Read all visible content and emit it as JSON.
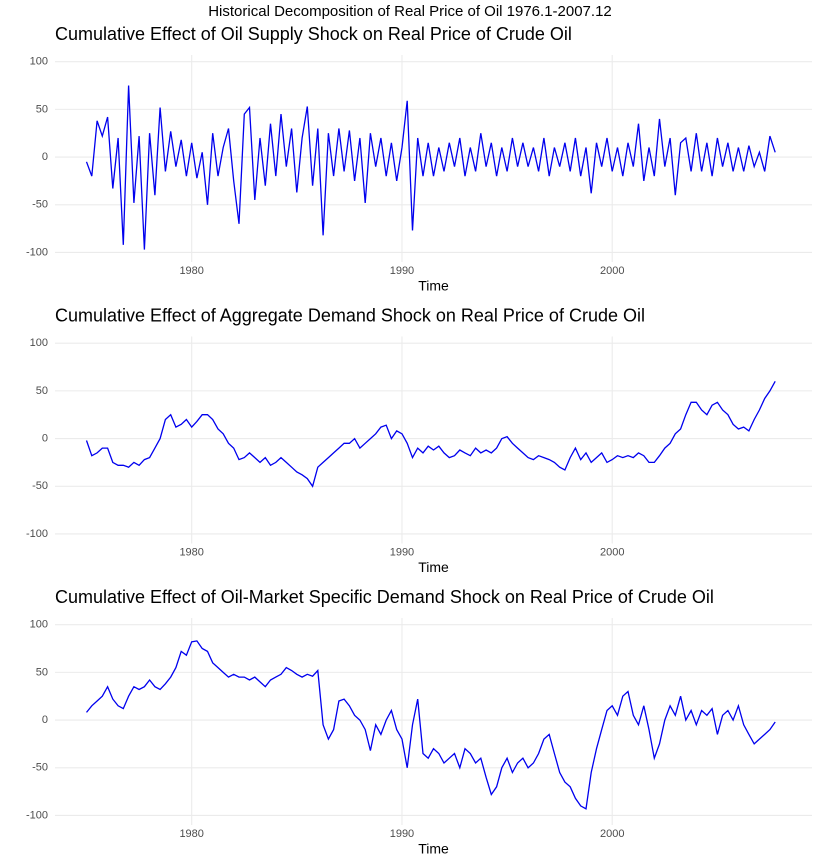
{
  "title": "Historical Decomposition of Real Price of Oil 1976.1-2007.12",
  "chart_data": [
    {
      "type": "line",
      "title": "Cumulative Effect of Oil Supply Shock on Real Price of Crude Oil",
      "xlabel": "Time",
      "x": [
        1975,
        1975.25,
        1975.5,
        1975.75,
        1976,
        1976.25,
        1976.5,
        1976.75,
        1977,
        1977.25,
        1977.5,
        1977.75,
        1978,
        1978.25,
        1978.5,
        1978.75,
        1979,
        1979.25,
        1979.5,
        1979.75,
        1980,
        1980.25,
        1980.5,
        1980.75,
        1981,
        1981.25,
        1981.5,
        1981.75,
        1982,
        1982.25,
        1982.5,
        1982.75,
        1983,
        1983.25,
        1983.5,
        1983.75,
        1984,
        1984.25,
        1984.5,
        1984.75,
        1985,
        1985.25,
        1985.5,
        1985.75,
        1986,
        1986.25,
        1986.5,
        1986.75,
        1987,
        1987.25,
        1987.5,
        1987.75,
        1988,
        1988.25,
        1988.5,
        1988.75,
        1989,
        1989.25,
        1989.5,
        1989.75,
        1990,
        1990.25,
        1990.5,
        1990.75,
        1991,
        1991.25,
        1991.5,
        1991.75,
        1992,
        1992.25,
        1992.5,
        1992.75,
        1993,
        1993.25,
        1993.5,
        1993.75,
        1994,
        1994.25,
        1994.5,
        1994.75,
        1995,
        1995.25,
        1995.5,
        1995.75,
        1996,
        1996.25,
        1996.5,
        1996.75,
        1997,
        1997.25,
        1997.5,
        1997.75,
        1998,
        1998.25,
        1998.5,
        1998.75,
        1999,
        1999.25,
        1999.5,
        1999.75,
        2000,
        2000.25,
        2000.5,
        2000.75,
        2001,
        2001.25,
        2001.5,
        2001.75,
        2002,
        2002.25,
        2002.5,
        2002.75,
        2003,
        2003.25,
        2003.5,
        2003.75,
        2004,
        2004.25,
        2004.5,
        2004.75,
        2005,
        2005.25,
        2005.5,
        2005.75,
        2006,
        2006.25,
        2006.5,
        2006.75,
        2007,
        2007.25,
        2007.5,
        2007.75
      ],
      "series": [
        {
          "color": "#0000ee",
          "values": [
            -5,
            -20,
            38,
            22,
            42,
            -33,
            20,
            -92,
            75,
            -48,
            22,
            -97,
            25,
            -40,
            52,
            -15,
            27,
            -10,
            18,
            -20,
            15,
            -22,
            5,
            -50,
            25,
            -20,
            10,
            30,
            -25,
            -70,
            45,
            52,
            -45,
            20,
            -30,
            35,
            -20,
            45,
            -10,
            30,
            -37,
            20,
            53,
            -30,
            30,
            -82,
            25,
            -20,
            30,
            -15,
            28,
            -25,
            20,
            -48,
            25,
            -10,
            20,
            -20,
            15,
            -25,
            10,
            59,
            -77,
            20,
            -20,
            15,
            -20,
            10,
            -15,
            15,
            -10,
            20,
            -20,
            10,
            -15,
            25,
            -10,
            15,
            -20,
            10,
            -15,
            20,
            -10,
            15,
            -10,
            10,
            -15,
            20,
            -20,
            10,
            -10,
            15,
            -15,
            20,
            -20,
            10,
            -38,
            15,
            -10,
            20,
            -15,
            10,
            -20,
            15,
            -10,
            35,
            -25,
            10,
            -20,
            40,
            -10,
            20,
            -40,
            15,
            20,
            -15,
            25,
            -15,
            15,
            -20,
            20,
            -10,
            15,
            -15,
            10,
            -15,
            12,
            -10,
            5,
            -15,
            22,
            5
          ]
        }
      ],
      "xlim": [
        1973.5,
        2009.5
      ],
      "ylim": [
        -110,
        107
      ],
      "xticks": [
        1980,
        1990,
        2000
      ],
      "yticks": [
        -100,
        -50,
        0,
        50,
        100
      ],
      "grid": true
    },
    {
      "type": "line",
      "title": "Cumulative Effect of Aggregate Demand Shock on Real Price of Crude Oil",
      "xlabel": "Time",
      "x": [
        1975,
        1975.25,
        1975.5,
        1975.75,
        1976,
        1976.25,
        1976.5,
        1976.75,
        1977,
        1977.25,
        1977.5,
        1977.75,
        1978,
        1978.25,
        1978.5,
        1978.75,
        1979,
        1979.25,
        1979.5,
        1979.75,
        1980,
        1980.25,
        1980.5,
        1980.75,
        1981,
        1981.25,
        1981.5,
        1981.75,
        1982,
        1982.25,
        1982.5,
        1982.75,
        1983,
        1983.25,
        1983.5,
        1983.75,
        1984,
        1984.25,
        1984.5,
        1984.75,
        1985,
        1985.25,
        1985.5,
        1985.75,
        1986,
        1986.25,
        1986.5,
        1986.75,
        1987,
        1987.25,
        1987.5,
        1987.75,
        1988,
        1988.25,
        1988.5,
        1988.75,
        1989,
        1989.25,
        1989.5,
        1989.75,
        1990,
        1990.25,
        1990.5,
        1990.75,
        1991,
        1991.25,
        1991.5,
        1991.75,
        1992,
        1992.25,
        1992.5,
        1992.75,
        1993,
        1993.25,
        1993.5,
        1993.75,
        1994,
        1994.25,
        1994.5,
        1994.75,
        1995,
        1995.25,
        1995.5,
        1995.75,
        1996,
        1996.25,
        1996.5,
        1996.75,
        1997,
        1997.25,
        1997.5,
        1997.75,
        1998,
        1998.25,
        1998.5,
        1998.75,
        1999,
        1999.25,
        1999.5,
        1999.75,
        2000,
        2000.25,
        2000.5,
        2000.75,
        2001,
        2001.25,
        2001.5,
        2001.75,
        2002,
        2002.25,
        2002.5,
        2002.75,
        2003,
        2003.25,
        2003.5,
        2003.75,
        2004,
        2004.25,
        2004.5,
        2004.75,
        2005,
        2005.25,
        2005.5,
        2005.75,
        2006,
        2006.25,
        2006.5,
        2006.75,
        2007,
        2007.25,
        2007.5,
        2007.75
      ],
      "series": [
        {
          "color": "#0000ee",
          "values": [
            -2,
            -18,
            -15,
            -10,
            -10,
            -25,
            -28,
            -28,
            -30,
            -25,
            -28,
            -22,
            -20,
            -10,
            0,
            20,
            25,
            12,
            15,
            20,
            12,
            18,
            25,
            25,
            20,
            10,
            5,
            -5,
            -10,
            -22,
            -20,
            -15,
            -20,
            -25,
            -20,
            -28,
            -25,
            -20,
            -25,
            -30,
            -35,
            -38,
            -42,
            -50,
            -30,
            -25,
            -20,
            -15,
            -10,
            -5,
            -5,
            0,
            -10,
            -5,
            0,
            5,
            12,
            14,
            0,
            8,
            5,
            -5,
            -20,
            -10,
            -15,
            -8,
            -12,
            -8,
            -15,
            -20,
            -18,
            -12,
            -15,
            -18,
            -10,
            -15,
            -12,
            -15,
            -10,
            0,
            2,
            -5,
            -10,
            -15,
            -20,
            -22,
            -18,
            -20,
            -22,
            -25,
            -30,
            -33,
            -20,
            -10,
            -22,
            -15,
            -25,
            -20,
            -15,
            -25,
            -22,
            -18,
            -20,
            -18,
            -20,
            -15,
            -18,
            -25,
            -25,
            -18,
            -10,
            -5,
            5,
            10,
            25,
            38,
            38,
            30,
            25,
            35,
            38,
            30,
            25,
            15,
            10,
            12,
            8,
            20,
            30,
            42,
            50,
            60
          ]
        }
      ],
      "xlim": [
        1973.5,
        2009.5
      ],
      "ylim": [
        -110,
        107
      ],
      "xticks": [
        1980,
        1990,
        2000
      ],
      "yticks": [
        -100,
        -50,
        0,
        50,
        100
      ],
      "grid": true
    },
    {
      "type": "line",
      "title": "Cumulative Effect of Oil-Market Specific Demand Shock on Real Price of Crude Oil",
      "xlabel": "Time",
      "x": [
        1975,
        1975.25,
        1975.5,
        1975.75,
        1976,
        1976.25,
        1976.5,
        1976.75,
        1977,
        1977.25,
        1977.5,
        1977.75,
        1978,
        1978.25,
        1978.5,
        1978.75,
        1979,
        1979.25,
        1979.5,
        1979.75,
        1980,
        1980.25,
        1980.5,
        1980.75,
        1981,
        1981.25,
        1981.5,
        1981.75,
        1982,
        1982.25,
        1982.5,
        1982.75,
        1983,
        1983.25,
        1983.5,
        1983.75,
        1984,
        1984.25,
        1984.5,
        1984.75,
        1985,
        1985.25,
        1985.5,
        1985.75,
        1986,
        1986.25,
        1986.5,
        1986.75,
        1987,
        1987.25,
        1987.5,
        1987.75,
        1988,
        1988.25,
        1988.5,
        1988.75,
        1989,
        1989.25,
        1989.5,
        1989.75,
        1990,
        1990.25,
        1990.5,
        1990.75,
        1991,
        1991.25,
        1991.5,
        1991.75,
        1992,
        1992.25,
        1992.5,
        1992.75,
        1993,
        1993.25,
        1993.5,
        1993.75,
        1994,
        1994.25,
        1994.5,
        1994.75,
        1995,
        1995.25,
        1995.5,
        1995.75,
        1996,
        1996.25,
        1996.5,
        1996.75,
        1997,
        1997.25,
        1997.5,
        1997.75,
        1998,
        1998.25,
        1998.5,
        1998.75,
        1999,
        1999.25,
        1999.5,
        1999.75,
        2000,
        2000.25,
        2000.5,
        2000.75,
        2001,
        2001.25,
        2001.5,
        2001.75,
        2002,
        2002.25,
        2002.5,
        2002.75,
        2003,
        2003.25,
        2003.5,
        2003.75,
        2004,
        2004.25,
        2004.5,
        2004.75,
        2005,
        2005.25,
        2005.5,
        2005.75,
        2006,
        2006.25,
        2006.5,
        2006.75,
        2007,
        2007.25,
        2007.5,
        2007.75
      ],
      "series": [
        {
          "color": "#0000ee",
          "values": [
            8,
            15,
            20,
            25,
            35,
            22,
            15,
            12,
            25,
            35,
            32,
            35,
            42,
            35,
            32,
            38,
            45,
            55,
            72,
            68,
            82,
            83,
            75,
            72,
            60,
            55,
            50,
            45,
            48,
            45,
            45,
            42,
            45,
            40,
            35,
            42,
            45,
            48,
            55,
            52,
            48,
            45,
            48,
            46,
            52,
            -5,
            -20,
            -10,
            20,
            22,
            15,
            5,
            0,
            -10,
            -32,
            -5,
            -15,
            0,
            10,
            -10,
            -20,
            -50,
            -5,
            22,
            -35,
            -40,
            -30,
            -35,
            -45,
            -40,
            -35,
            -50,
            -30,
            -35,
            -45,
            -40,
            -60,
            -78,
            -70,
            -50,
            -40,
            -55,
            -45,
            -40,
            -50,
            -45,
            -35,
            -20,
            -15,
            -35,
            -55,
            -65,
            -70,
            -82,
            -90,
            -93,
            -55,
            -30,
            -10,
            10,
            15,
            5,
            25,
            30,
            5,
            -5,
            15,
            -10,
            -40,
            -25,
            0,
            15,
            5,
            25,
            0,
            10,
            -5,
            10,
            5,
            12,
            -15,
            5,
            10,
            0,
            15,
            -5,
            -15,
            -25,
            -20,
            -15,
            -10,
            -2
          ]
        }
      ],
      "xlim": [
        1973.5,
        2009.5
      ],
      "ylim": [
        -110,
        107
      ],
      "xticks": [
        1980,
        1990,
        2000
      ],
      "yticks": [
        -100,
        -50,
        0,
        50,
        100
      ],
      "grid": true
    }
  ]
}
